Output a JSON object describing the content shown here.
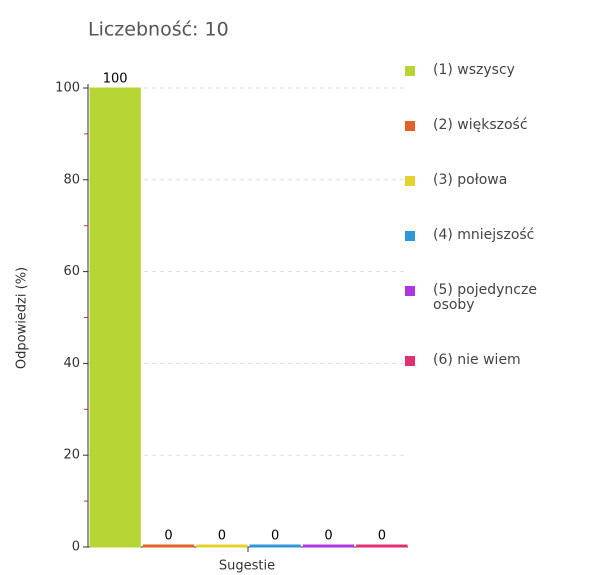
{
  "chart_data": {
    "type": "bar",
    "title": "Liczebność: 10",
    "ylabel": "Odpowiedzi (%)",
    "xlabel": "Sugestie",
    "categories": [
      null
    ],
    "series": [
      {
        "name": "(1) wszyscy",
        "color": "#b6d434",
        "values": [
          100
        ]
      },
      {
        "name": "(2) większość",
        "color": "#e0622a",
        "values": [
          0
        ]
      },
      {
        "name": "(3) połowa",
        "color": "#e6d22c",
        "values": [
          0
        ]
      },
      {
        "name": "(4) mniejszość",
        "color": "#2f96d8",
        "values": [
          0
        ]
      },
      {
        "name": "(5) pojedyncze osoby",
        "color": "#b034e0",
        "values": [
          0
        ]
      },
      {
        "name": "(6) nie wiem",
        "color": "#e03070",
        "values": [
          0
        ]
      }
    ],
    "ylim": [
      0,
      100
    ],
    "yticks": [
      0,
      20,
      40,
      60,
      80,
      100
    ],
    "grid": true,
    "legend": "right"
  }
}
